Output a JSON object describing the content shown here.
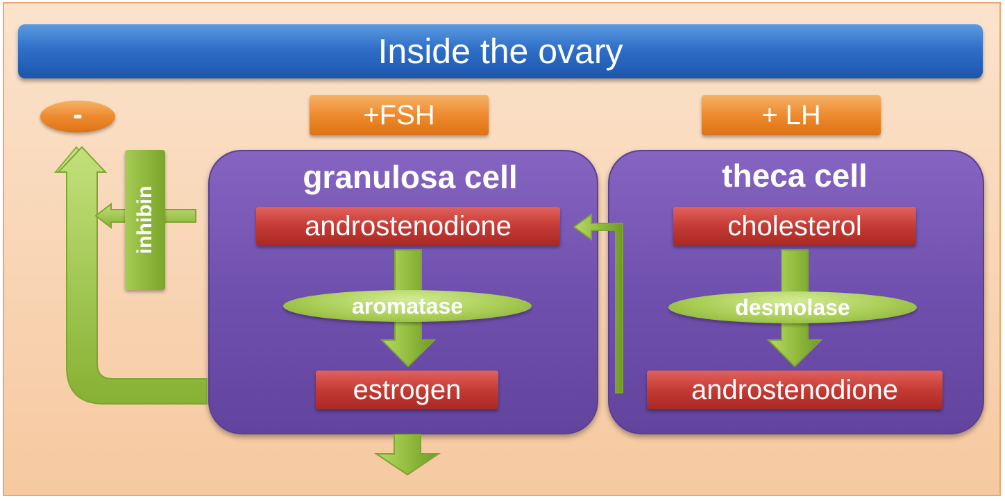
{
  "title": "Inside the ovary",
  "feedback": {
    "sign": "-",
    "hormone": "inhibin"
  },
  "stimuli": {
    "fsh": "+FSH",
    "lh": "+ LH"
  },
  "granulosa": {
    "title": "granulosa cell",
    "substrate": "androstenodione",
    "enzyme": "aromatase",
    "product": "estrogen"
  },
  "theca": {
    "title": "theca cell",
    "substrate": "cholesterol",
    "enzyme": "desmolase",
    "product": "androstenodione"
  },
  "colors": {
    "title_bar": "#2f6fc9",
    "hormone_boxes": "#ee8a2e",
    "cells": "#7050ae",
    "molecules": "#c53a34",
    "enzymes_and_arrows": "#a9cd55",
    "background": "#f8d4b0"
  }
}
